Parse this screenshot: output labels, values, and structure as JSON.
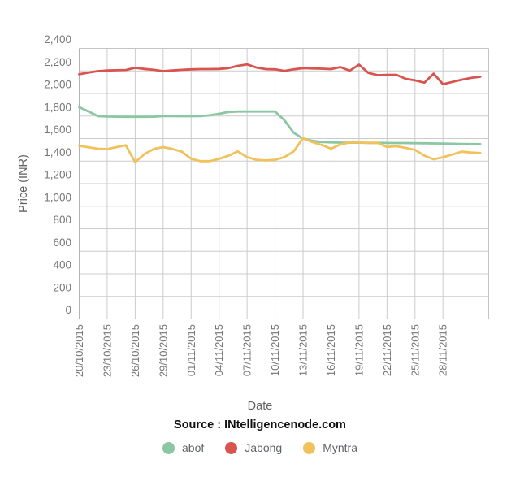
{
  "axes": {
    "y_title": "Price (INR)",
    "x_title": "Date",
    "y_tick_labels": [
      "2,400",
      "2,200",
      "2,000",
      "1,800",
      "1,600",
      "1,400",
      "1,200",
      "1,000",
      "800",
      "600",
      "400",
      "200",
      "0"
    ]
  },
  "source": {
    "label": "Source : INtelligencenode.com"
  },
  "legend": {
    "items": [
      {
        "name": "abof",
        "color": "#8bc7a2"
      },
      {
        "name": "Jabong",
        "color": "#d9534f"
      },
      {
        "name": "Myntra",
        "color": "#efc25c"
      }
    ]
  },
  "chart_data": {
    "type": "line",
    "title": "",
    "xlabel": "Date",
    "ylabel": "Price (INR)",
    "ylim": [
      0,
      2400
    ],
    "y_step": 200,
    "grid": true,
    "legend_position": "bottom",
    "source": "Source : INtelligencenode.com",
    "x": [
      "20/10/2015",
      "21/10/2015",
      "22/10/2015",
      "23/10/2015",
      "24/10/2015",
      "25/10/2015",
      "26/10/2015",
      "27/10/2015",
      "28/10/2015",
      "29/10/2015",
      "30/10/2015",
      "31/10/2015",
      "01/11/2015",
      "02/11/2015",
      "03/11/2015",
      "04/11/2015",
      "05/11/2015",
      "06/11/2015",
      "07/11/2015",
      "08/11/2015",
      "09/11/2015",
      "10/11/2015",
      "11/11/2015",
      "12/11/2015",
      "13/11/2015",
      "14/11/2015",
      "15/11/2015",
      "16/11/2015",
      "17/11/2015",
      "18/11/2015",
      "19/11/2015",
      "20/11/2015",
      "21/11/2015",
      "22/11/2015",
      "23/11/2015",
      "24/11/2015",
      "25/11/2015",
      "26/11/2015",
      "27/11/2015",
      "28/11/2015",
      "29/11/2015",
      "30/11/2015",
      "01/12/2015",
      "02/12/2015"
    ],
    "x_tick_labels": [
      "20/10/2015",
      "23/10/2015",
      "26/10/2015",
      "29/10/2015",
      "01/11/2015",
      "04/11/2015",
      "07/11/2015",
      "10/11/2015",
      "13/11/2015",
      "16/11/2015",
      "19/11/2015",
      "22/11/2015",
      "25/11/2015",
      "28/11/2015"
    ],
    "x_tick_every": 3,
    "series": [
      {
        "name": "abof",
        "color": "#8bc7a2",
        "values": [
          1878,
          1840,
          1800,
          1795,
          1794,
          1793,
          1793,
          1793,
          1794,
          1800,
          1799,
          1798,
          1798,
          1800,
          1806,
          1820,
          1836,
          1840,
          1840,
          1840,
          1840,
          1840,
          1762,
          1652,
          1600,
          1580,
          1570,
          1566,
          1564,
          1563,
          1563,
          1562,
          1562,
          1561,
          1560,
          1560,
          1559,
          1558,
          1557,
          1556,
          1554,
          1552,
          1551,
          1550
        ]
      },
      {
        "name": "Jabong",
        "color": "#d9534f",
        "values": [
          2170,
          2185,
          2198,
          2204,
          2206,
          2208,
          2228,
          2218,
          2210,
          2198,
          2204,
          2210,
          2214,
          2216,
          2216,
          2218,
          2225,
          2245,
          2258,
          2230,
          2216,
          2214,
          2200,
          2214,
          2224,
          2222,
          2220,
          2216,
          2234,
          2202,
          2255,
          2182,
          2162,
          2164,
          2166,
          2130,
          2116,
          2096,
          2176,
          2082,
          2102,
          2122,
          2138,
          2148
        ]
      },
      {
        "name": "Myntra",
        "color": "#efc25c",
        "values": [
          1536,
          1522,
          1510,
          1506,
          1524,
          1540,
          1390,
          1462,
          1508,
          1524,
          1508,
          1484,
          1420,
          1400,
          1400,
          1420,
          1448,
          1486,
          1436,
          1412,
          1406,
          1412,
          1436,
          1486,
          1605,
          1568,
          1544,
          1510,
          1548,
          1566,
          1564,
          1562,
          1562,
          1526,
          1532,
          1517,
          1500,
          1448,
          1416,
          1434,
          1458,
          1484,
          1476,
          1471
        ]
      }
    ]
  }
}
